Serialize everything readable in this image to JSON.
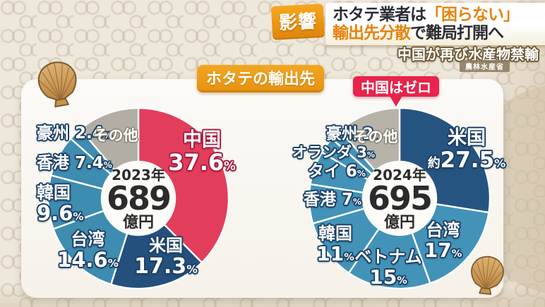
{
  "header": {
    "badge": "影響",
    "headline_line1_part1": "ホタテ業者は",
    "headline_line1_part2": "「困らない」",
    "headline_line2_part1": "輸出先分散",
    "headline_line2_part2": "で難局打開へ",
    "subheadline": "中国が再び水産物禁輸",
    "source_badge": "農林水産省"
  },
  "panel": {
    "title": "ホタテの輸出先",
    "callout": "中国はゼロ"
  },
  "misc": {
    "percent_sign": "%"
  },
  "colors": {
    "china_red": "#e23e5c",
    "usa_navy_2023": "#23507d",
    "usa_navy_2024": "#265481",
    "teal_2023": "#3e8cb0",
    "teal_2024": "#4392b8",
    "other_gray": "#b2aea4",
    "accent_orange": "#e8820a",
    "callout_red": "#e7244c",
    "background_beige": "#eee7db"
  },
  "chart_data": [
    {
      "type": "pie",
      "title": "ホタテの輸出先 2023年",
      "order": "clockwise-from-top",
      "unit": "%",
      "center": {
        "year": "2023年",
        "value": "689",
        "unit": "億円"
      },
      "segments": [
        {
          "label": "中国",
          "value": 37.6,
          "display": "37.6",
          "color": "#e23e5c"
        },
        {
          "label": "米国",
          "value": 17.3,
          "display": "17.3",
          "color": "#23507d"
        },
        {
          "label": "台湾",
          "value": 14.6,
          "display": "14.6",
          "color": "#3e8cb0"
        },
        {
          "label": "韓国",
          "value": 9.6,
          "display": "9.6",
          "color": "#3e8cb0"
        },
        {
          "label": "香港",
          "value": 7.4,
          "display": "7.4",
          "color": "#3e8cb0"
        },
        {
          "label": "豪州",
          "value": 2.4,
          "display": "2.4",
          "color": "#3e8cb0"
        },
        {
          "label": "その他",
          "value": 11.1,
          "display": "",
          "color": "#b2aea4"
        }
      ]
    },
    {
      "type": "pie",
      "title": "ホタテの輸出先 2024年",
      "order": "clockwise-from-top",
      "unit": "%",
      "center": {
        "year": "2024年",
        "value": "695",
        "unit": "億円"
      },
      "segments": [
        {
          "label": "米国",
          "value": 27.5,
          "prefix": "約",
          "display": "27.5",
          "color": "#265481"
        },
        {
          "label": "台湾",
          "value": 17,
          "display": "17",
          "color": "#4392b8"
        },
        {
          "label": "ベトナム",
          "value": 15,
          "display": "15",
          "color": "#4392b8"
        },
        {
          "label": "韓国",
          "value": 11,
          "display": "11",
          "color": "#4392b8"
        },
        {
          "label": "香港",
          "value": 7,
          "display": "7",
          "color": "#4392b8"
        },
        {
          "label": "タイ",
          "value": 6,
          "display": "6",
          "color": "#4392b8"
        },
        {
          "label": "オランダ",
          "value": 3,
          "display": "3",
          "color": "#4392b8"
        },
        {
          "label": "豪州",
          "value": 2,
          "display": "2",
          "color": "#4392b8"
        },
        {
          "label": "その他",
          "value": 11.5,
          "display": "",
          "color": "#b7b3a8"
        }
      ]
    }
  ]
}
